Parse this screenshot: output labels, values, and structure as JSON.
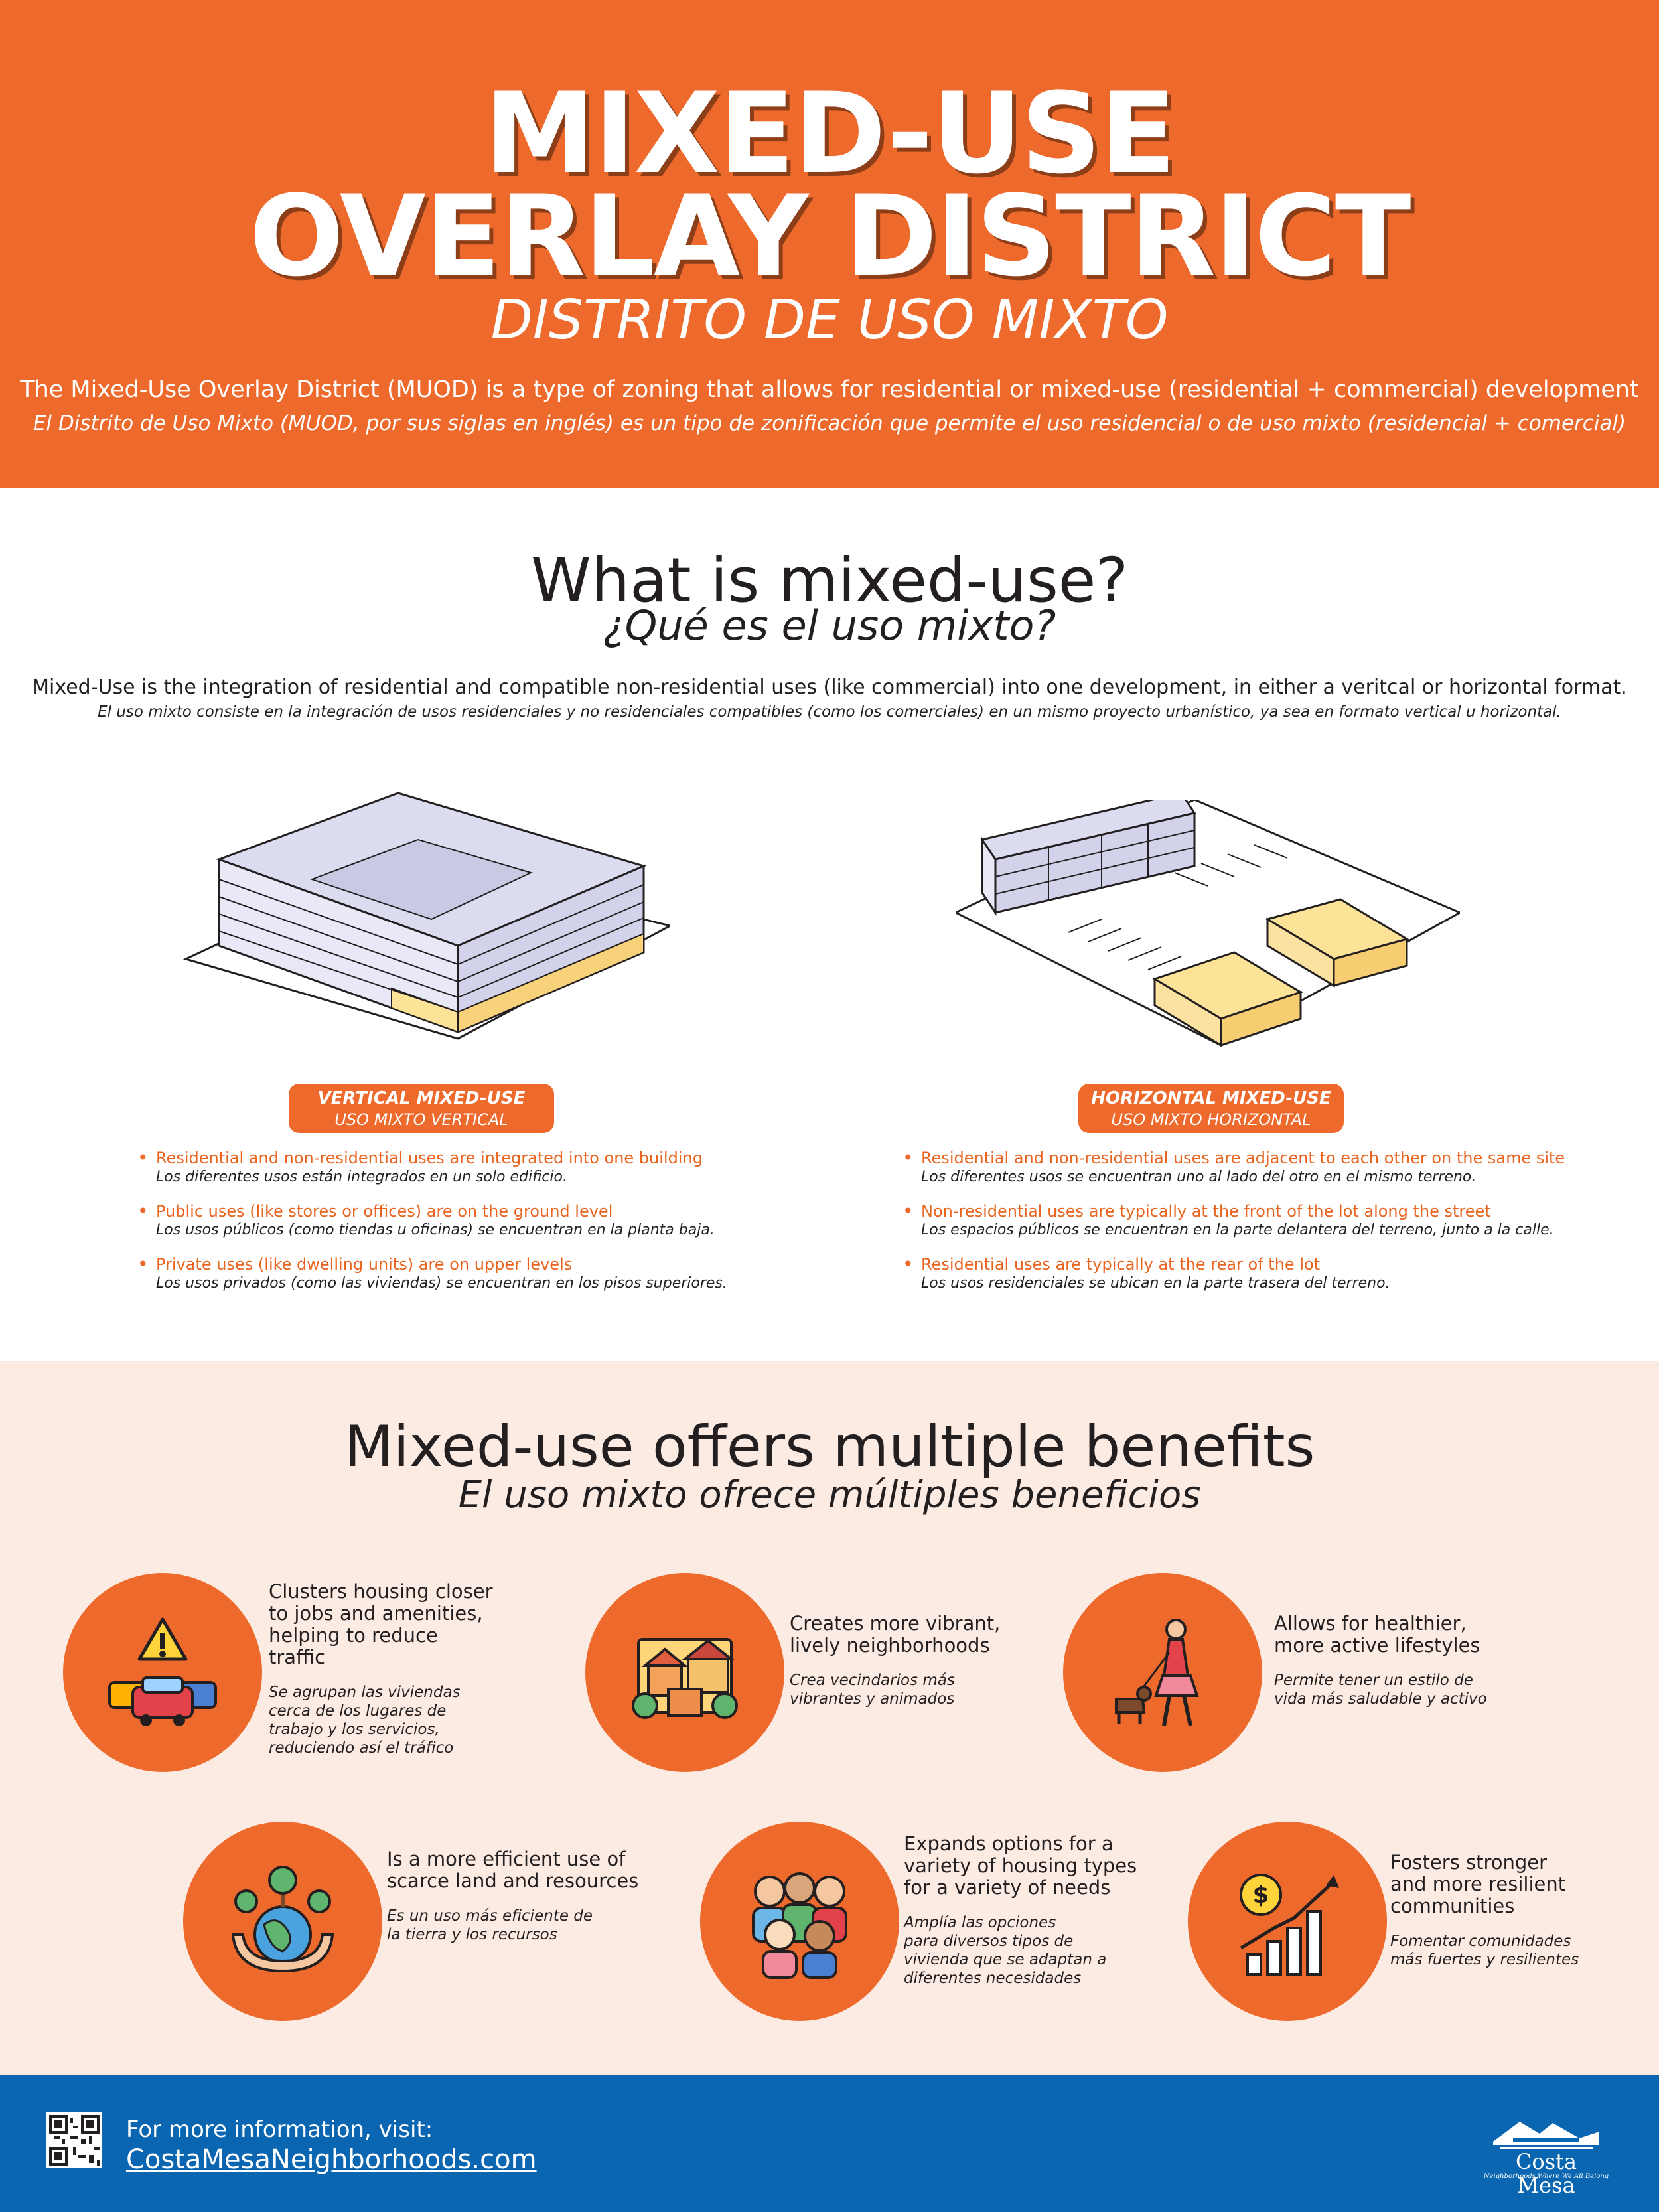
{
  "header": {
    "title_line1": "MIXED-USE",
    "title_line2": "OVERLAY DISTRICT",
    "subtitle": "DISTRITO DE USO MIXTO",
    "description_en": "The Mixed-Use Overlay District (MUOD) is a type of zoning that allows for residential or mixed-use (residential + commercial) development",
    "description_es": "El Distrito de Uso Mixto (MUOD, por sus siglas en inglés) es un tipo de zonificación que permite el uso residencial o de uso mixto (residencial + comercial)"
  },
  "what_is": {
    "heading": "What is mixed-use?",
    "heading_es": "¿Qué es el uso mixto?",
    "definition_en": "Mixed-Use is the integration of residential and compatible non-residential uses (like commercial) into one development, in either a veritcal or horizontal format.",
    "definition_es": "El uso mixto consiste en la integración de usos residenciales y no residenciales compatibles (como los comerciales) en un mismo proyecto urbanístico, ya sea en formato vertical u horizontal.",
    "vertical": {
      "label_en": "VERTICAL MIXED-USE",
      "label_es": "USO MIXTO VERTICAL",
      "bullets": [
        {
          "en": "Residential and non-residential uses are integrated into one building",
          "es": "Los diferentes usos están integrados en un solo edificio."
        },
        {
          "en": "Public uses (like stores or offices) are on the ground level",
          "es": "Los usos públicos (como tiendas u oficinas) se encuentran en la planta baja."
        },
        {
          "en": "Private uses (like dwelling units) are on upper levels",
          "es": "Los usos privados (como las viviendas) se encuentran en los pisos superiores."
        }
      ]
    },
    "horizontal": {
      "label_en": "HORIZONTAL MIXED-USE",
      "label_es": "USO MIXTO HORIZONTAL",
      "bullets": [
        {
          "en": "Residential and non-residential uses are adjacent to each other on the same site",
          "es": "Los diferentes usos se encuentran uno al lado del otro en el mismo terreno."
        },
        {
          "en": "Non-residential uses are typically at the front of the lot along the street",
          "es": "Los espacios públicos se encuentran en la parte delantera del terreno, junto a la calle."
        },
        {
          "en": "Residential uses are typically at the rear of the lot",
          "es": "Los usos residenciales se ubican en la parte trasera del terreno."
        }
      ]
    }
  },
  "benefits": {
    "heading": "Mixed-use offers multiple benefits",
    "heading_es": "El uso mixto ofrece múltiples beneficios",
    "items": [
      {
        "icon": "traffic-cars-icon",
        "en": "Clusters housing closer\nto jobs and amenities,\nhelping to reduce traffic",
        "es": "Se agrupan las viviendas\ncerca de los lugares de\ntrabajo y los servicios,\nreduciendo así el tráfico"
      },
      {
        "icon": "neighborhood-houses-icon",
        "en": "Creates more vibrant,\nlively neighborhoods",
        "es": "Crea vecindarios más\nvibrantes y animados"
      },
      {
        "icon": "walking-dog-icon",
        "en": "Allows for healthier,\nmore active lifestyles",
        "es": "Permite tener un estilo de\nvida más saludable y activo"
      },
      {
        "icon": "earth-hands-icon",
        "en": "Is a more efficient use of\nscarce land and resources",
        "es": "Es un uso más eficiente de\nla tierra y los recursos"
      },
      {
        "icon": "diverse-people-icon",
        "en": "Expands options for a\nvariety of housing types\nfor a variety of needs",
        "es": "Amplía las opciones\npara diversos tipos de\nvivienda que se adaptan a\ndiferentes necesidades"
      },
      {
        "icon": "growth-chart-icon",
        "en": "Fosters stronger\nand more resilient\ncommunities",
        "es": "Fomentar comunidades\nmás fuertes y resilientes"
      }
    ]
  },
  "footer": {
    "info_label": "For more information, visit:",
    "website": "CostaMesaNeighborhoods.com",
    "logo_name": "Costa Mesa",
    "logo_tagline": "Neighborhoods Where We All Belong"
  },
  "colors": {
    "accent_orange": "#ee6a2c",
    "footer_blue": "#0a66b0",
    "benefits_bg": "#fcebe2",
    "building_lavender": "#dcdcf0",
    "commercial_yellow": "#fde398"
  }
}
